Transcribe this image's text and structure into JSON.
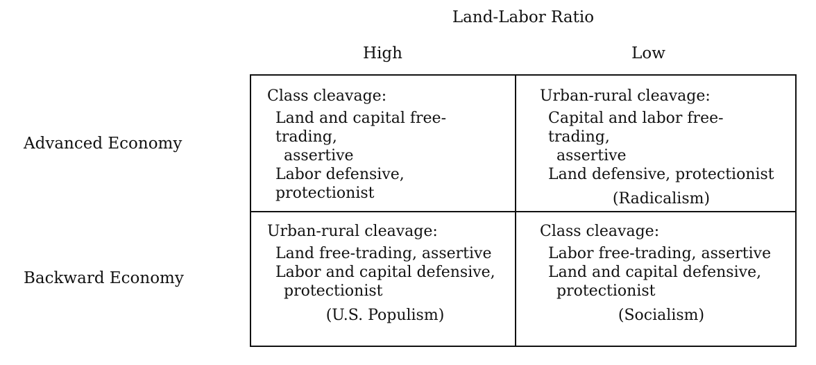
{
  "header": {
    "title": "Land-Labor Ratio",
    "col_high": "High",
    "col_low": "Low"
  },
  "rows": {
    "advanced": "Advanced Economy",
    "backward": "Backward Economy"
  },
  "cells": {
    "advanced_high": {
      "title": "Class cleavage:",
      "line1": "Land and capital free-trading,",
      "line2": "assertive",
      "line3": "Labor defensive, protectionist",
      "note": ""
    },
    "advanced_low": {
      "title": "Urban-rural cleavage:",
      "line1": "Capital and labor free-trading,",
      "line2": "assertive",
      "line3": "Land defensive, protectionist",
      "note": "(Radicalism)"
    },
    "backward_high": {
      "title": "Urban-rural cleavage:",
      "line1": "Land free-trading, assertive",
      "line2": "Labor and capital defensive,",
      "line3": "protectionist",
      "note": "(U.S. Populism)"
    },
    "backward_low": {
      "title": "Class cleavage:",
      "line1": "Labor free-trading, assertive",
      "line2": "Land and capital defensive,",
      "line3": "protectionist",
      "note": "(Socialism)"
    }
  }
}
